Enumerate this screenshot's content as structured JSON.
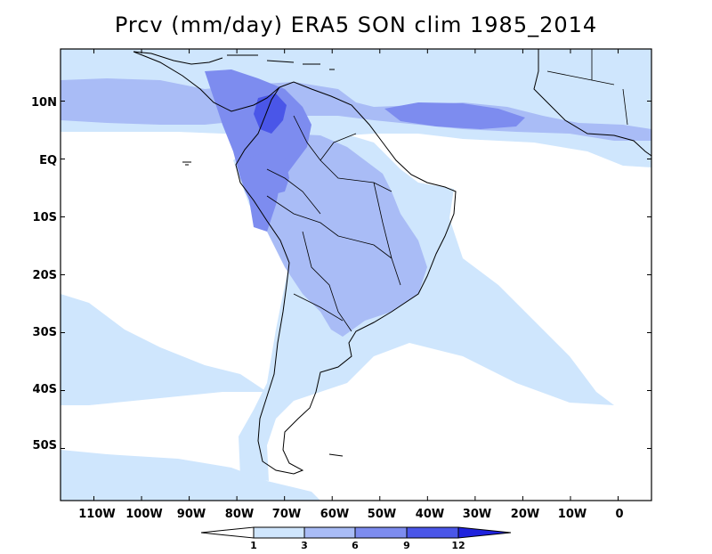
{
  "title": "Prcv (mm/day) ERA5 SON clim 1985_2014",
  "map": {
    "variable": "Convective precipitation",
    "units": "mm/day",
    "extent": {
      "lon_min": -117,
      "lon_max": 7,
      "lat_min": -59,
      "lat_max": 19
    },
    "lat_ticks": [
      {
        "label": "10N",
        "value": 10
      },
      {
        "label": "EQ",
        "value": 0
      },
      {
        "label": "10S",
        "value": -10
      },
      {
        "label": "20S",
        "value": -20
      },
      {
        "label": "30S",
        "value": -30
      },
      {
        "label": "40S",
        "value": -40
      },
      {
        "label": "50S",
        "value": -50
      }
    ],
    "lon_ticks": [
      {
        "label": "110W",
        "value": -110
      },
      {
        "label": "100W",
        "value": -100
      },
      {
        "label": "90W",
        "value": -90
      },
      {
        "label": "80W",
        "value": -80
      },
      {
        "label": "70W",
        "value": -70
      },
      {
        "label": "60W",
        "value": -60
      },
      {
        "label": "50W",
        "value": -50
      },
      {
        "label": "40W",
        "value": -40
      },
      {
        "label": "30W",
        "value": -30
      },
      {
        "label": "20W",
        "value": -20
      },
      {
        "label": "10W",
        "value": -10
      },
      {
        "label": "0",
        "value": 0
      }
    ]
  },
  "colorbar": {
    "levels": [
      "1",
      "3",
      "6",
      "9",
      "12"
    ],
    "colors": [
      "#ffffff",
      "#cfe6fd",
      "#a9bcf6",
      "#7d8cef",
      "#4a56e8",
      "#1f22dd"
    ]
  }
}
